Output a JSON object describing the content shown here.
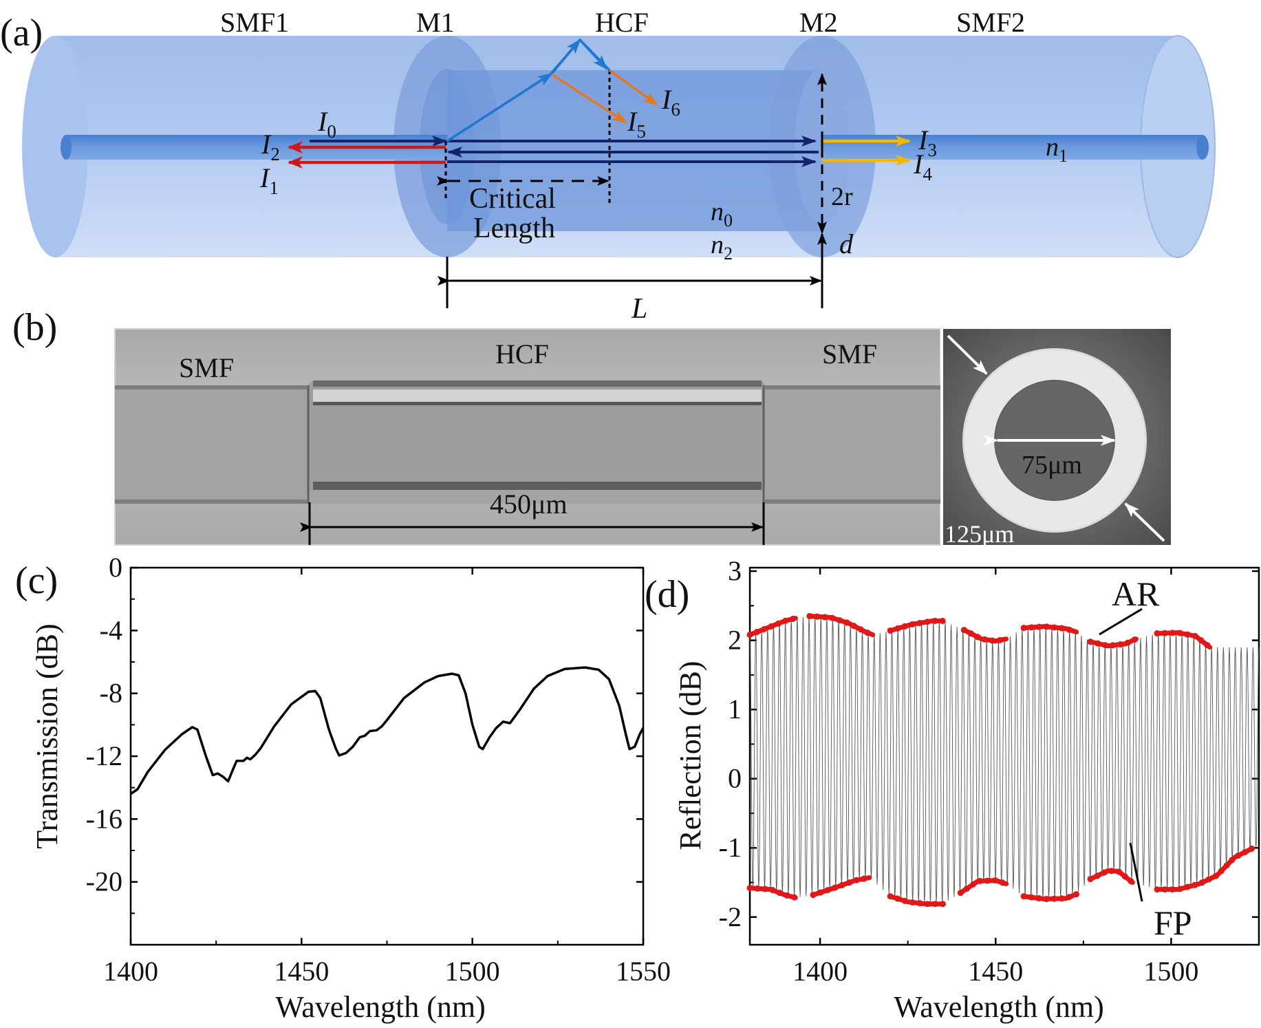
{
  "panel_a": {
    "label": "(a)",
    "labels": {
      "smf1": "SMF1",
      "m1": "M1",
      "hcf": "HCF",
      "m2": "M2",
      "smf2": "SMF2"
    },
    "rays": {
      "i0": "I",
      "i0_sub": "0",
      "i1": "I",
      "i1_sub": "1",
      "i2": "I",
      "i2_sub": "2",
      "i3": "I",
      "i3_sub": "3",
      "i4": "I",
      "i4_sub": "4",
      "i5": "I",
      "i5_sub": "5",
      "i6": "I",
      "i6_sub": "6"
    },
    "n1": "n",
    "n1_sub": "1",
    "n0": "n",
    "n0_sub": "0",
    "n2": "n",
    "n2_sub": "2",
    "two_r": "2r",
    "d": "d",
    "L": "L",
    "critical1": "Critical",
    "critical2": "Length",
    "colors": {
      "fiber": "#8fb0e6",
      "core": "#5b8fd6",
      "red": "#cc1a1a",
      "navy": "#15236b",
      "blue": "#2079cf",
      "orange": "#e07a22",
      "yellow": "#f5b800"
    }
  },
  "panel_b": {
    "label": "(b)",
    "smf_left": "SMF",
    "hcf": "HCF",
    "smf_right": "SMF",
    "length": "450μm",
    "inner": "75μm",
    "outer": "125μm"
  },
  "chart_data": [
    {
      "panel": "(c)",
      "type": "line",
      "xlabel": "Wavelength (nm)",
      "ylabel": "Transmission (dB)",
      "xlim": [
        1400,
        1550
      ],
      "ylim": [
        -24,
        0
      ],
      "xticks": [
        1400,
        1450,
        1500,
        1550
      ],
      "yticks": [
        0,
        -4,
        -8,
        -12,
        -16,
        -20
      ],
      "ytick_labels": [
        "0",
        "-4",
        "-8",
        "-12",
        "-16",
        "-20"
      ],
      "series": [
        {
          "color": "#000000",
          "points": [
            [
              1400,
              -14.4
            ],
            [
              1402,
              -14.1
            ],
            [
              1405,
              -13.0
            ],
            [
              1410,
              -11.6
            ],
            [
              1415,
              -10.6
            ],
            [
              1418,
              -10.15
            ],
            [
              1419.5,
              -10.3
            ],
            [
              1422,
              -12.0
            ],
            [
              1424,
              -13.2
            ],
            [
              1425.5,
              -13.1
            ],
            [
              1427,
              -13.3
            ],
            [
              1428.5,
              -13.6
            ],
            [
              1430,
              -12.8
            ],
            [
              1431,
              -12.3
            ],
            [
              1433,
              -12.3
            ],
            [
              1434,
              -12.1
            ],
            [
              1435,
              -12.2
            ],
            [
              1436.5,
              -11.9
            ],
            [
              1438,
              -11.5
            ],
            [
              1442,
              -10.1
            ],
            [
              1447,
              -8.7
            ],
            [
              1452,
              -7.9
            ],
            [
              1454,
              -7.85
            ],
            [
              1455.5,
              -8.3
            ],
            [
              1458,
              -10.3
            ],
            [
              1460,
              -11.5
            ],
            [
              1461,
              -11.95
            ],
            [
              1463,
              -11.8
            ],
            [
              1465,
              -11.4
            ],
            [
              1467,
              -10.8
            ],
            [
              1468.5,
              -10.7
            ],
            [
              1470,
              -10.4
            ],
            [
              1472,
              -10.35
            ],
            [
              1473.5,
              -10.1
            ],
            [
              1475,
              -9.7
            ],
            [
              1480,
              -8.3
            ],
            [
              1486,
              -7.3
            ],
            [
              1490,
              -6.9
            ],
            [
              1494,
              -6.75
            ],
            [
              1496,
              -6.85
            ],
            [
              1498,
              -8.0
            ],
            [
              1500,
              -10.0
            ],
            [
              1502,
              -11.4
            ],
            [
              1503,
              -11.55
            ],
            [
              1505,
              -10.8
            ],
            [
              1507,
              -10.2
            ],
            [
              1509,
              -9.8
            ],
            [
              1511,
              -9.9
            ],
            [
              1512,
              -9.6
            ],
            [
              1514,
              -9.0
            ],
            [
              1518,
              -7.7
            ],
            [
              1522,
              -6.9
            ],
            [
              1527,
              -6.45
            ],
            [
              1533,
              -6.35
            ],
            [
              1537,
              -6.5
            ],
            [
              1540,
              -7.1
            ],
            [
              1543,
              -8.8
            ],
            [
              1545,
              -10.7
            ],
            [
              1546,
              -11.55
            ],
            [
              1547.5,
              -11.4
            ],
            [
              1549,
              -10.6
            ],
            [
              1550,
              -10.2
            ]
          ]
        }
      ]
    },
    {
      "panel": "(d)",
      "type": "line",
      "xlabel": "Wavelength (nm)",
      "ylabel": "Reflection (dB)",
      "xlim": [
        1380,
        1525
      ],
      "ylim": [
        -2.4,
        3.05
      ],
      "xticks": [
        1400,
        1450,
        1500
      ],
      "yticks": [
        -2,
        -1,
        0,
        1,
        2,
        3
      ],
      "ytick_labels": [
        "-2",
        "-1",
        "0",
        "1",
        "2",
        "3"
      ],
      "fringes": 86,
      "series": [
        {
          "name": "AR",
          "color": "#e01818",
          "role": "upper",
          "points": [
            [
              1380,
              2.08
            ],
            [
              1385,
              2.18
            ],
            [
              1390,
              2.28
            ],
            [
              1393,
              2.32
            ]
          ]
        },
        {
          "name": "AR",
          "color": "#e01818",
          "role": "upper",
          "points": [
            [
              1397,
              2.35
            ],
            [
              1403,
              2.33
            ],
            [
              1408,
              2.25
            ],
            [
              1413,
              2.12
            ],
            [
              1415,
              2.08
            ]
          ]
        },
        {
          "name": "AR",
          "color": "#e01818",
          "role": "upper",
          "points": [
            [
              1420,
              2.14
            ],
            [
              1426,
              2.23
            ],
            [
              1432,
              2.28
            ],
            [
              1435,
              2.28
            ]
          ]
        },
        {
          "name": "AR",
          "color": "#e01818",
          "role": "upper",
          "points": [
            [
              1441,
              2.15
            ],
            [
              1446,
              2.02
            ],
            [
              1450,
              1.99
            ],
            [
              1453,
              2.02
            ]
          ]
        },
        {
          "name": "AR",
          "color": "#e01818",
          "role": "upper",
          "points": [
            [
              1458,
              2.18
            ],
            [
              1464,
              2.2
            ],
            [
              1470,
              2.17
            ],
            [
              1473,
              2.12
            ]
          ]
        },
        {
          "name": "AR",
          "color": "#e01818",
          "role": "upper",
          "points": [
            [
              1477,
              1.98
            ],
            [
              1482,
              1.92
            ],
            [
              1487,
              1.95
            ],
            [
              1490,
              2.02
            ]
          ]
        },
        {
          "name": "AR",
          "color": "#e01818",
          "role": "upper",
          "points": [
            [
              1496,
              2.1
            ],
            [
              1502,
              2.11
            ],
            [
              1507,
              2.06
            ],
            [
              1511,
              1.9
            ]
          ]
        },
        {
          "name": "FP",
          "color": "#e01818",
          "role": "lower",
          "points": [
            [
              1380,
              -1.58
            ],
            [
              1386,
              -1.6
            ],
            [
              1390,
              -1.68
            ],
            [
              1393,
              -1.72
            ]
          ]
        },
        {
          "name": "FP",
          "color": "#e01818",
          "role": "lower",
          "points": [
            [
              1398,
              -1.68
            ],
            [
              1404,
              -1.58
            ],
            [
              1410,
              -1.47
            ],
            [
              1414,
              -1.43
            ]
          ]
        },
        {
          "name": "FP",
          "color": "#e01818",
          "role": "lower",
          "points": [
            [
              1420,
              -1.7
            ],
            [
              1425,
              -1.78
            ],
            [
              1430,
              -1.81
            ],
            [
              1435,
              -1.81
            ]
          ]
        },
        {
          "name": "FP",
          "color": "#e01818",
          "role": "lower",
          "points": [
            [
              1440,
              -1.65
            ],
            [
              1445,
              -1.48
            ],
            [
              1450,
              -1.47
            ],
            [
              1453,
              -1.52
            ]
          ]
        },
        {
          "name": "FP",
          "color": "#e01818",
          "role": "lower",
          "points": [
            [
              1458,
              -1.7
            ],
            [
              1464,
              -1.74
            ],
            [
              1470,
              -1.73
            ],
            [
              1473,
              -1.67
            ]
          ]
        },
        {
          "name": "FP",
          "color": "#e01818",
          "role": "lower",
          "points": [
            [
              1477,
              -1.45
            ],
            [
              1482,
              -1.33
            ],
            [
              1485,
              -1.34
            ],
            [
              1489,
              -1.5
            ]
          ]
        },
        {
          "name": "FP",
          "color": "#e01818",
          "role": "lower",
          "points": [
            [
              1496,
              -1.6
            ],
            [
              1502,
              -1.6
            ],
            [
              1508,
              -1.52
            ],
            [
              1513,
              -1.4
            ],
            [
              1518,
              -1.14
            ],
            [
              1523,
              -1.01
            ]
          ]
        }
      ],
      "annotations": [
        {
          "text": "AR"
        },
        {
          "text": "FP"
        }
      ]
    }
  ]
}
